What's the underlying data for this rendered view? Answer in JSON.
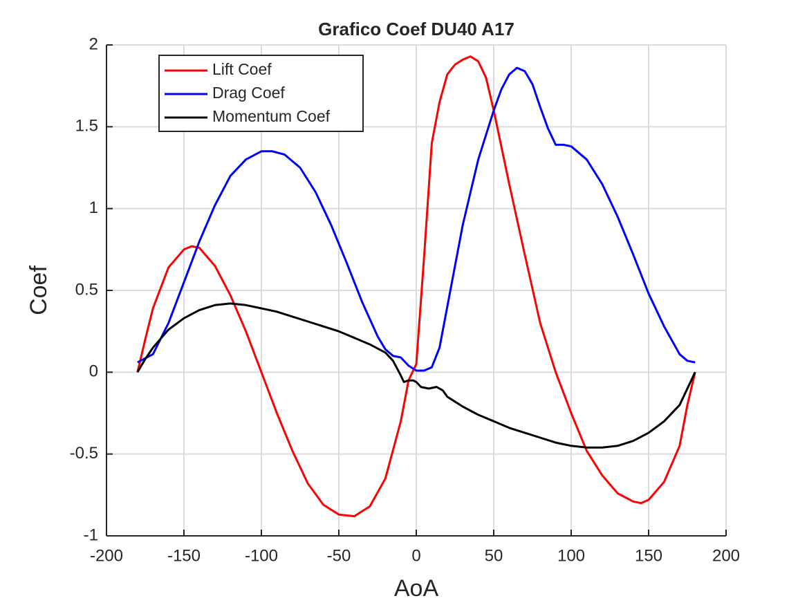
{
  "chart_data": {
    "type": "line",
    "title": "Grafico Coef DU40 A17",
    "x_label": "AoA",
    "y_label": "Coef",
    "xlim": [
      -200,
      200
    ],
    "xticks": [
      -200,
      -150,
      -100,
      -50,
      0,
      50,
      100,
      150,
      200
    ],
    "ylim": [
      -1,
      2
    ],
    "yticks": [
      -1,
      -0.5,
      0,
      0.5,
      1,
      1.5,
      2
    ],
    "grid": true,
    "legend": "upper-left",
    "series": [
      {
        "name": "Lift Coef",
        "color": "#ff0000",
        "x": [
          -180,
          -175,
          -170,
          -160,
          -150,
          -145,
          -140,
          -130,
          -120,
          -110,
          -100,
          -90,
          -80,
          -70,
          -60,
          -50,
          -40,
          -30,
          -20,
          -10,
          -5,
          0,
          5,
          10,
          15,
          20,
          25,
          30,
          35,
          40,
          45,
          50,
          60,
          70,
          80,
          90,
          100,
          110,
          120,
          130,
          140,
          145,
          150,
          160,
          170,
          175,
          180
        ],
        "values": [
          0,
          0.2,
          0.39,
          0.64,
          0.75,
          0.77,
          0.76,
          0.65,
          0.47,
          0.25,
          0.0,
          -0.25,
          -0.48,
          -0.68,
          -0.81,
          -0.87,
          -0.88,
          -0.82,
          -0.65,
          -0.3,
          -0.05,
          0.05,
          0.7,
          1.4,
          1.65,
          1.82,
          1.88,
          1.91,
          1.93,
          1.9,
          1.8,
          1.6,
          1.15,
          0.72,
          0.3,
          0.0,
          -0.25,
          -0.48,
          -0.63,
          -0.74,
          -0.79,
          -0.8,
          -0.78,
          -0.67,
          -0.45,
          -0.2,
          0
        ]
      },
      {
        "name": "Drag Coef",
        "color": "#0000ff",
        "x": [
          -180,
          -170,
          -160,
          -150,
          -140,
          -130,
          -120,
          -110,
          -100,
          -93,
          -85,
          -75,
          -65,
          -55,
          -45,
          -35,
          -25,
          -20,
          -15,
          -10,
          -5,
          0,
          5,
          10,
          15,
          20,
          30,
          40,
          50,
          55,
          60,
          65,
          70,
          75,
          80,
          85,
          90,
          95,
          100,
          110,
          120,
          130,
          140,
          150,
          160,
          170,
          175,
          180
        ],
        "values": [
          0.06,
          0.11,
          0.3,
          0.55,
          0.8,
          1.02,
          1.2,
          1.3,
          1.35,
          1.35,
          1.33,
          1.25,
          1.1,
          0.9,
          0.67,
          0.43,
          0.22,
          0.14,
          0.1,
          0.09,
          0.04,
          0.01,
          0.01,
          0.03,
          0.15,
          0.4,
          0.9,
          1.3,
          1.6,
          1.73,
          1.82,
          1.86,
          1.84,
          1.76,
          1.62,
          1.49,
          1.39,
          1.39,
          1.38,
          1.3,
          1.15,
          0.95,
          0.72,
          0.48,
          0.28,
          0.11,
          0.07,
          0.06
        ]
      },
      {
        "name": "Momentum Coef",
        "color": "#000000",
        "x": [
          -180,
          -175,
          -170,
          -160,
          -150,
          -140,
          -130,
          -120,
          -110,
          -100,
          -90,
          -80,
          -70,
          -60,
          -50,
          -40,
          -30,
          -20,
          -15,
          -10,
          -8,
          -5,
          -2,
          0,
          3,
          8,
          13,
          17,
          20,
          30,
          40,
          50,
          60,
          70,
          80,
          90,
          100,
          110,
          120,
          130,
          140,
          150,
          160,
          170,
          180
        ],
        "values": [
          0,
          0.08,
          0.15,
          0.26,
          0.33,
          0.38,
          0.41,
          0.42,
          0.41,
          0.39,
          0.37,
          0.34,
          0.31,
          0.28,
          0.25,
          0.21,
          0.17,
          0.12,
          0.07,
          -0.02,
          -0.06,
          -0.05,
          -0.05,
          -0.06,
          -0.09,
          -0.1,
          -0.09,
          -0.11,
          -0.15,
          -0.21,
          -0.26,
          -0.3,
          -0.34,
          -0.37,
          -0.4,
          -0.43,
          -0.45,
          -0.46,
          -0.46,
          -0.45,
          -0.42,
          -0.37,
          -0.3,
          -0.2,
          0
        ]
      }
    ]
  }
}
